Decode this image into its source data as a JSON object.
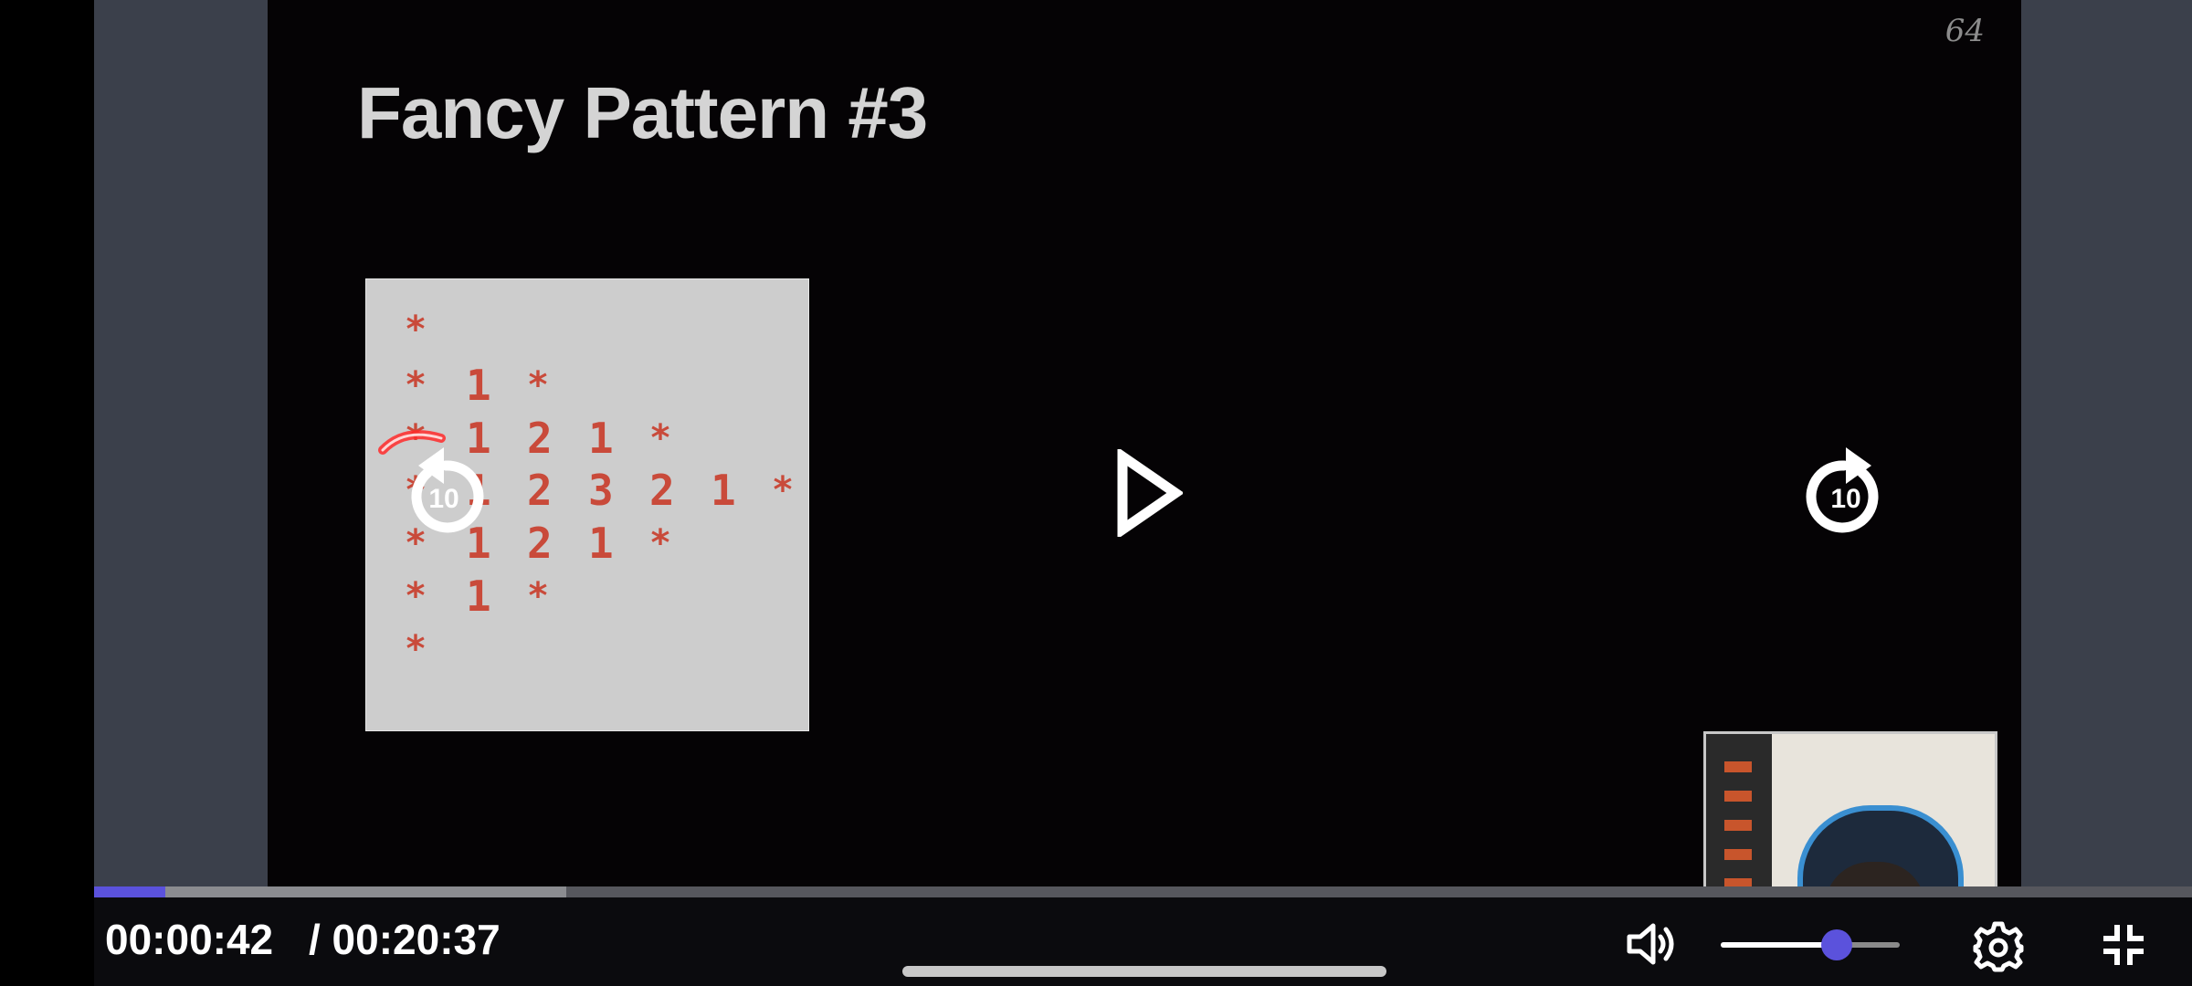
{
  "slide": {
    "title": "Fancy Pattern #3",
    "page_mark": "64"
  },
  "pattern": {
    "rows": [
      [
        "*"
      ],
      [
        "*",
        "1",
        "*"
      ],
      [
        "*",
        "1",
        "2",
        "1",
        "*"
      ],
      [
        "*",
        "1",
        "2",
        "3",
        "2",
        "1",
        "*"
      ],
      [
        "*",
        "1",
        "2",
        "1",
        "*"
      ],
      [
        "*",
        "1",
        "*"
      ],
      [
        "*"
      ]
    ]
  },
  "overlay": {
    "seek_back_seconds": "10",
    "seek_forward_seconds": "10"
  },
  "player": {
    "current_time": "00:00:42",
    "total_time": "/ 00:20:37",
    "progress_fraction": 0.034,
    "buffered_fraction": 0.225,
    "volume_fraction": 0.65
  },
  "colors": {
    "accent": "#5b52dc",
    "pattern_text": "#c94a3a",
    "slate": "#3b404b"
  }
}
